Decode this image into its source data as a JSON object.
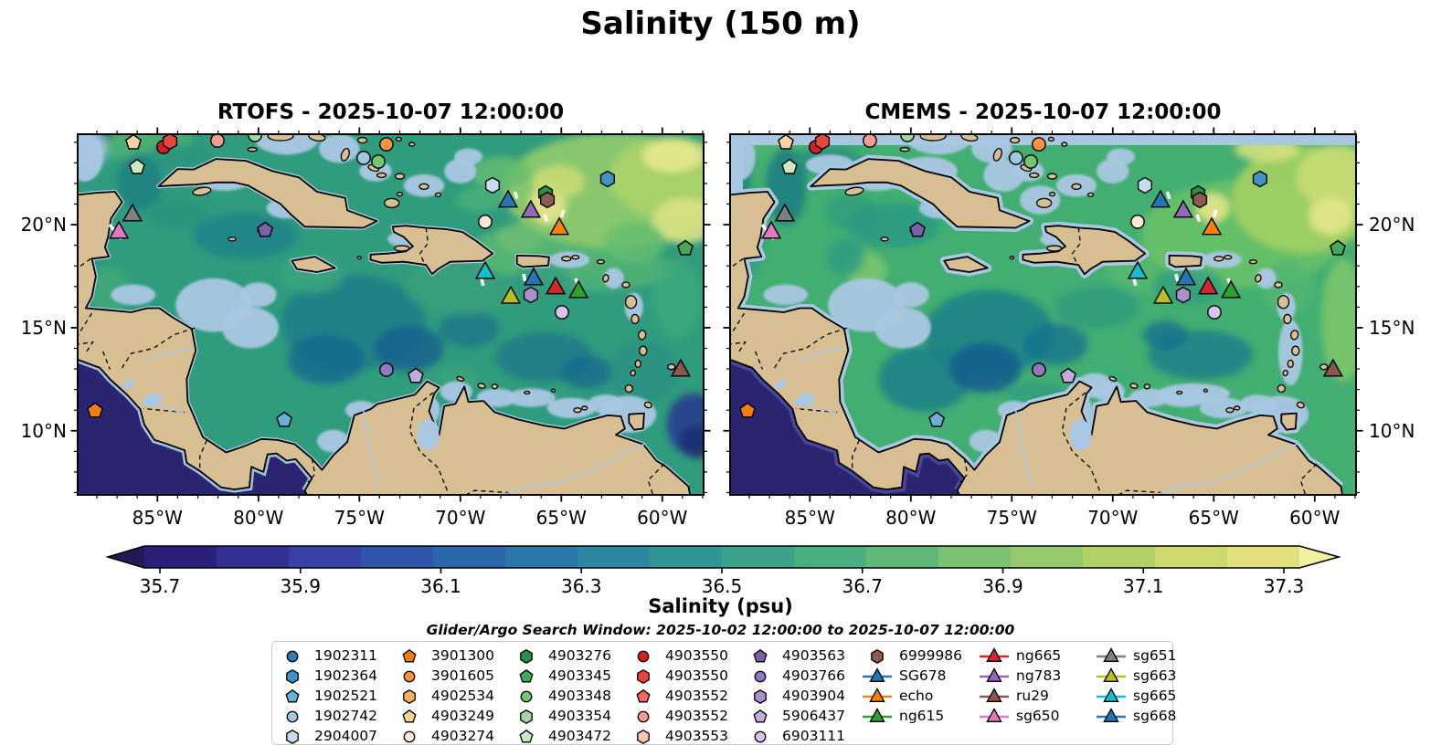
{
  "title": "Salinity (150 m)",
  "panels": [
    {
      "id": "rtofs",
      "title": "RTOFS - 2025-10-07 12:00:00",
      "lat_label_side": "left"
    },
    {
      "id": "cmems",
      "title": "CMEMS - 2025-10-07 12:00:00",
      "lat_label_side": "right"
    }
  ],
  "axes": {
    "lon_ticks": [
      {
        "deg": -85,
        "label": "85°W"
      },
      {
        "deg": -80,
        "label": "80°W"
      },
      {
        "deg": -75,
        "label": "75°W"
      },
      {
        "deg": -70,
        "label": "70°W"
      },
      {
        "deg": -65,
        "label": "65°W"
      },
      {
        "deg": -60,
        "label": "60°W"
      }
    ],
    "lat_ticks": [
      {
        "deg": 20,
        "label": "20°N"
      },
      {
        "deg": 15,
        "label": "15°N"
      },
      {
        "deg": 10,
        "label": "10°N"
      }
    ]
  },
  "colorbar": {
    "label": "Salinity (psu)",
    "ticks": [
      {
        "value": 35.7,
        "label": "35.7"
      },
      {
        "value": 35.9,
        "label": "35.9"
      },
      {
        "value": 36.1,
        "label": "36.1"
      },
      {
        "value": 36.3,
        "label": "36.3"
      },
      {
        "value": 36.5,
        "label": "36.5"
      },
      {
        "value": 36.7,
        "label": "36.7"
      },
      {
        "value": 36.9,
        "label": "36.9"
      },
      {
        "value": 37.1,
        "label": "37.1"
      },
      {
        "value": 37.3,
        "label": "37.3"
      }
    ],
    "range": [
      35.7,
      37.3
    ],
    "segments": [
      "#2b2079",
      "#323093",
      "#3642a8",
      "#3054ab",
      "#2b66ab",
      "#2a77a9",
      "#2b87a2",
      "#309597",
      "#3aa28b",
      "#4bae81",
      "#60b878",
      "#7ac171",
      "#96c96c",
      "#b2d169",
      "#cdd96e",
      "#e2df7d"
    ],
    "extend_low": "#201a55",
    "extend_high": "#f4f0a2"
  },
  "search_window": "Glider/Argo Search Window: 2025-10-02 12:00:00 to 2025-10-07 12:00:00",
  "legend": {
    "columns": [
      [
        {
          "label": "1902311",
          "shape": "circle",
          "color": "#2d7dbb"
        },
        {
          "label": "1902364",
          "shape": "hexagon",
          "color": "#4292c6"
        },
        {
          "label": "1902521",
          "shape": "pentagon",
          "color": "#6baed6"
        },
        {
          "label": "1902742",
          "shape": "circle",
          "color": "#9ecae1"
        },
        {
          "label": "2904007",
          "shape": "hexagon",
          "color": "#c6dbef"
        }
      ],
      [
        {
          "label": "3901300",
          "shape": "pentagon",
          "color": "#f07f10"
        },
        {
          "label": "3901605",
          "shape": "circle",
          "color": "#fd9140"
        },
        {
          "label": "4902534",
          "shape": "hexagon",
          "color": "#fdae6b"
        },
        {
          "label": "4903249",
          "shape": "pentagon",
          "color": "#fdd0a2"
        },
        {
          "label": "4903274",
          "shape": "circle",
          "color": "#fee8d3"
        }
      ],
      [
        {
          "label": "4903276",
          "shape": "hexagon",
          "color": "#2a8f47"
        },
        {
          "label": "4903345",
          "shape": "pentagon",
          "color": "#45a85c"
        },
        {
          "label": "4903348",
          "shape": "circle",
          "color": "#74c476"
        },
        {
          "label": "4903354",
          "shape": "hexagon",
          "color": "#a2d99b"
        },
        {
          "label": "4903472",
          "shape": "pentagon",
          "color": "#c9eac2"
        }
      ],
      [
        {
          "label": "4903550",
          "shape": "circle",
          "color": "#d31f26"
        },
        {
          "label": "4903550",
          "shape": "hexagon",
          "color": "#e8463c"
        },
        {
          "label": "4903552",
          "shape": "pentagon",
          "color": "#ee6a5c"
        },
        {
          "label": "4903552",
          "shape": "circle",
          "color": "#f59d92"
        },
        {
          "label": "4903553",
          "shape": "hexagon",
          "color": "#fac5b8"
        }
      ],
      [
        {
          "label": "4903563",
          "shape": "pentagon",
          "color": "#7c60aa"
        },
        {
          "label": "4903766",
          "shape": "circle",
          "color": "#9478bf"
        },
        {
          "label": "4903904",
          "shape": "hexagon",
          "color": "#a991cd"
        },
        {
          "label": "5906437",
          "shape": "pentagon",
          "color": "#c3abe0"
        },
        {
          "label": "6903111",
          "shape": "circle",
          "color": "#dcc3ef"
        }
      ],
      [
        {
          "label": "6999986",
          "shape": "hexagon",
          "color": "#8d5c51"
        },
        {
          "label": "SG678",
          "shape": "triangle",
          "color": "#1f77b4",
          "line": true
        },
        {
          "label": "echo",
          "shape": "triangle",
          "color": "#ff7f0e",
          "line": true
        },
        {
          "label": "ng615",
          "shape": "triangle",
          "color": "#2ca02c",
          "line": true
        }
      ],
      [
        {
          "label": "ng665",
          "shape": "triangle",
          "color": "#d62728",
          "line": true
        },
        {
          "label": "ng783",
          "shape": "triangle",
          "color": "#9467bd",
          "line": true
        },
        {
          "label": "ru29",
          "shape": "triangle",
          "color": "#8c564b",
          "line": true
        },
        {
          "label": "sg650",
          "shape": "triangle",
          "color": "#e377c2",
          "line": true
        }
      ],
      [
        {
          "label": "sg651",
          "shape": "triangle",
          "color": "#7f7f7f",
          "line": true
        },
        {
          "label": "sg663",
          "shape": "triangle",
          "color": "#bcbd22",
          "line": true
        },
        {
          "label": "sg665",
          "shape": "triangle",
          "color": "#17becf",
          "line": true
        },
        {
          "label": "sg668",
          "shape": "triangle",
          "color": "#1f77b4",
          "line": true
        }
      ]
    ]
  },
  "markers": [
    {
      "name": "4903249",
      "shape": "pentagon",
      "color": "#fdd0a2",
      "lon": -86.19,
      "lat": 23.99
    },
    {
      "name": "4903550",
      "shape": "circle",
      "color": "#d31f26",
      "lon": -84.7,
      "lat": 23.77
    },
    {
      "name": "4903550-2",
      "shape": "hexagon",
      "color": "#e8463c",
      "lon": -84.38,
      "lat": 24.04
    },
    {
      "name": "4903552",
      "shape": "circle",
      "color": "#f59d92",
      "lon": -82.03,
      "lat": 24.08
    },
    {
      "name": "4903354",
      "shape": "circle",
      "color": "#a2d99b",
      "lon": -80.17,
      "lat": 24.35
    },
    {
      "name": "3901605",
      "shape": "circle",
      "color": "#fd9140",
      "lon": -73.66,
      "lat": 23.9
    },
    {
      "name": "1902742",
      "shape": "circle",
      "color": "#9ecae1",
      "lon": -74.79,
      "lat": 23.24
    },
    {
      "name": "4903348",
      "shape": "circle",
      "color": "#74c476",
      "lon": -74.06,
      "lat": 23.06
    },
    {
      "name": "4903472",
      "shape": "pentagon",
      "color": "#c9eac2",
      "lon": -86.01,
      "lat": 22.79
    },
    {
      "name": "sg651",
      "shape": "triangle",
      "color": "#7f7f7f",
      "lon": -86.24,
      "lat": 20.49
    },
    {
      "name": "sg650",
      "shape": "triangle",
      "color": "#e377c2",
      "lon": -86.91,
      "lat": 19.65
    },
    {
      "name": "4903563",
      "shape": "pentagon",
      "color": "#7c60aa",
      "lon": -79.67,
      "lat": 19.74
    },
    {
      "name": "1902364",
      "shape": "hexagon",
      "color": "#4292c6",
      "lon": -62.71,
      "lat": 22.22
    },
    {
      "name": "2904007",
      "shape": "hexagon",
      "color": "#c6dbef",
      "lon": -68.41,
      "lat": 21.91
    },
    {
      "name": "SG678",
      "shape": "triangle",
      "color": "#1f77b4",
      "lon": -67.64,
      "lat": 21.16
    },
    {
      "name": "ng783",
      "shape": "triangle",
      "color": "#9467bd",
      "lon": -66.51,
      "lat": 20.67
    },
    {
      "name": "4903276",
      "shape": "hexagon",
      "color": "#2a8f47",
      "lon": -65.78,
      "lat": 21.51
    },
    {
      "name": "6999986",
      "shape": "hexagon",
      "color": "#8d5c51",
      "lon": -65.69,
      "lat": 21.2
    },
    {
      "name": "4903274",
      "shape": "circle",
      "color": "#fee8d3",
      "lon": -68.77,
      "lat": 20.14
    },
    {
      "name": "echo",
      "shape": "triangle",
      "color": "#ff7f0e",
      "lon": -65.1,
      "lat": 19.83
    },
    {
      "name": "4903345",
      "shape": "pentagon",
      "color": "#45a85c",
      "lon": -58.86,
      "lat": 18.85
    },
    {
      "name": "sg665",
      "shape": "triangle",
      "color": "#17becf",
      "lon": -68.77,
      "lat": 17.7
    },
    {
      "name": "sg668",
      "shape": "triangle",
      "color": "#1f77b4",
      "lon": -66.37,
      "lat": 17.39
    },
    {
      "name": "ng665",
      "shape": "triangle",
      "color": "#d62728",
      "lon": -65.28,
      "lat": 16.95
    },
    {
      "name": "ng615",
      "shape": "triangle",
      "color": "#2ca02c",
      "lon": -64.15,
      "lat": 16.77
    },
    {
      "name": "sg663",
      "shape": "triangle",
      "color": "#bcbd22",
      "lon": -67.5,
      "lat": 16.5
    },
    {
      "name": "4903904",
      "shape": "hexagon",
      "color": "#a991cd",
      "lon": -66.51,
      "lat": 16.59
    },
    {
      "name": "6903111",
      "shape": "circle",
      "color": "#dcc3ef",
      "lon": -64.97,
      "lat": 15.75
    },
    {
      "name": "4903766",
      "shape": "circle",
      "color": "#9478bf",
      "lon": -73.66,
      "lat": 12.96
    },
    {
      "name": "5906437",
      "shape": "pentagon",
      "color": "#c3abe0",
      "lon": -72.21,
      "lat": 12.65
    },
    {
      "name": "ru29",
      "shape": "triangle",
      "color": "#8c564b",
      "lon": -59.09,
      "lat": 12.96
    },
    {
      "name": "3901300",
      "shape": "pentagon",
      "color": "#f07f10",
      "lon": -88.09,
      "lat": 10.97
    },
    {
      "name": "1902521",
      "shape": "pentagon",
      "color": "#6baed6",
      "lon": -78.72,
      "lat": 10.52
    }
  ],
  "tracks": [
    {
      "points": [
        [
          -87.37,
          20.0
        ],
        [
          -86.78,
          19.3
        ]
      ]
    },
    {
      "points": [
        [
          -67.3,
          21.6
        ],
        [
          -67.13,
          21.07
        ]
      ]
    },
    {
      "points": [
        [
          -65.83,
          20.49
        ],
        [
          -65.65,
          19.96
        ]
      ]
    },
    {
      "points": [
        [
          -64.88,
          20.71
        ],
        [
          -65.1,
          20.05
        ]
      ]
    },
    {
      "points": [
        [
          -68.95,
          17.39
        ],
        [
          -68.81,
          16.81
        ]
      ]
    },
    {
      "points": [
        [
          -66.87,
          17.61
        ],
        [
          -66.74,
          17.03
        ]
      ]
    },
    {
      "points": [
        [
          -64.29,
          17.39
        ],
        [
          -64.11,
          16.9
        ]
      ]
    }
  ],
  "map_colors": {
    "land": "#d7be93",
    "coastline": "#000000",
    "shallow": "#a9c7e3",
    "pacific": "#2b2470",
    "river": "#a8c8e8",
    "ocean_rtofs": "#2f9c7d",
    "ocean_cmems": "#42ae71",
    "track": "#ffffff"
  }
}
